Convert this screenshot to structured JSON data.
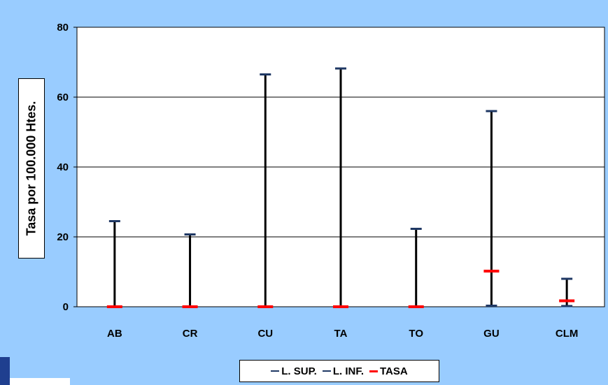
{
  "chart_data": {
    "type": "error-bar",
    "title": "",
    "xlabel": "",
    "ylabel": "Tasa por 100.000 Htes.",
    "ylim": [
      0,
      80
    ],
    "yticks": [
      0,
      20,
      40,
      60,
      80
    ],
    "grid": true,
    "legend_position": "bottom",
    "categories": [
      "AB",
      "CR",
      "CU",
      "TA",
      "TO",
      "GU",
      "CLM"
    ],
    "series": [
      {
        "name": "L. SUP.",
        "color": "#1f3864",
        "values": [
          24.5,
          20.7,
          66.5,
          68.2,
          22.3,
          56.0,
          8.0
        ]
      },
      {
        "name": "L. INF.",
        "color": "#1f3864",
        "values": [
          0,
          0,
          0,
          0,
          0,
          0.3,
          0.2
        ]
      },
      {
        "name": "TASA",
        "color": "#ff0000",
        "values": [
          0,
          0,
          0,
          0,
          0,
          10.2,
          1.7
        ]
      }
    ]
  },
  "colors": {
    "background": "#99ccff",
    "plot_background": "#ffffff",
    "bar": "#000000"
  }
}
